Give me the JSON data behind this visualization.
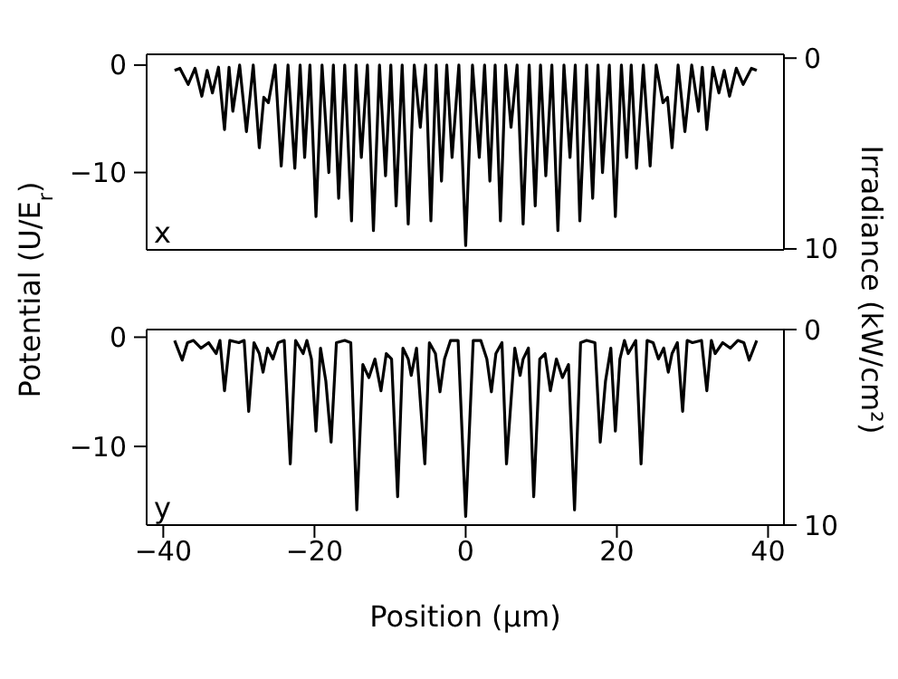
{
  "chart_data": [
    {
      "type": "line",
      "ylabel": "Potential (U/E$_{r}$)",
      "y2label": "Irradiance (kW/cm²)",
      "annotations": [
        "x"
      ],
      "xlim": [
        -42.2,
        42.1
      ],
      "xticks": [
        -40,
        -20,
        0,
        20,
        40
      ],
      "ylim": [
        -17.2,
        1
      ],
      "yticks": [
        {
          "value": 0,
          "label": "0"
        },
        -10
      ],
      "y2lim": [
        10.05,
        -0.2
      ],
      "y2ticks": [
        {
          "value": 0,
          "label": "0"
        },
        10
      ],
      "tick_labels": "y",
      "series": [
        {
          "color": "#000000",
          "x": [
            -38.5,
            -37.8,
            -36.7,
            -35.8,
            -34.9,
            -34.2,
            -33.5,
            -32.7,
            -31.9,
            -31.3,
            -30.8,
            -29.9,
            -29.0,
            -28.1,
            -27.3,
            -26.7,
            -26.1,
            -25.2,
            -24.4,
            -23.5,
            -22.6,
            -21.9,
            -21.3,
            -20.6,
            -19.8,
            -19.0,
            -18.1,
            -17.5,
            -16.8,
            -16.0,
            -15.1,
            -14.5,
            -13.8,
            -13.0,
            -12.2,
            -11.4,
            -10.6,
            -9.9,
            -9.2,
            -8.4,
            -7.6,
            -6.8,
            -6.0,
            -5.3,
            -4.6,
            -3.9,
            -3.2,
            -2.5,
            -1.8,
            -0.9,
            0,
            0.9,
            1.8,
            2.5,
            3.2,
            3.9,
            4.6,
            5.3,
            6.0,
            6.8,
            7.6,
            8.4,
            9.2,
            9.9,
            10.6,
            11.4,
            12.2,
            13.0,
            13.8,
            14.5,
            15.1,
            16.0,
            16.8,
            17.5,
            18.1,
            19.0,
            19.8,
            20.6,
            21.3,
            21.9,
            22.6,
            23.5,
            24.4,
            25.2,
            26.1,
            26.7,
            27.3,
            28.1,
            29.0,
            29.9,
            30.8,
            31.3,
            31.9,
            32.7,
            33.5,
            34.2,
            34.9,
            35.8,
            36.7,
            37.8,
            38.5
          ],
          "values": [
            -0.5,
            -0.3,
            -1.8,
            -0.3,
            -2.9,
            -0.5,
            -2.6,
            -0.2,
            -6.0,
            -0.2,
            -4.3,
            0,
            -6.2,
            0,
            -7.7,
            -3.0,
            -3.5,
            0,
            -9.4,
            0,
            -9.6,
            0,
            -8.6,
            0,
            -14.1,
            0,
            -10.0,
            0,
            -12.4,
            0,
            -14.5,
            0,
            -8.6,
            0,
            -15.4,
            0,
            -10.3,
            0,
            -13.1,
            0,
            -14.8,
            0,
            -5.8,
            0,
            -14.5,
            0,
            -10.8,
            0,
            -8.6,
            0,
            -16.8,
            0,
            -8.6,
            0,
            -10.8,
            0,
            -14.5,
            0,
            -5.8,
            0,
            -14.8,
            0,
            -13.1,
            0,
            -10.3,
            0,
            -15.4,
            0,
            -8.6,
            0,
            -14.5,
            0,
            -12.4,
            0,
            -10.0,
            0,
            -14.1,
            0,
            -8.6,
            0,
            -9.6,
            0,
            -9.4,
            0,
            -3.5,
            -3.0,
            -7.7,
            0,
            -6.2,
            0,
            -4.3,
            -0.2,
            -6.0,
            -0.2,
            -2.6,
            -0.5,
            -2.9,
            -0.3,
            -1.8,
            -0.3,
            -0.5
          ]
        }
      ]
    },
    {
      "type": "line",
      "xlabel": "Position (µm)",
      "annotations": [
        "y"
      ],
      "xlim": [
        -42.2,
        42.1
      ],
      "xticks": [
        -40,
        -20,
        0,
        20,
        40
      ],
      "ylim": [
        -17.2,
        0.7
      ],
      "yticks": [
        {
          "value": 0,
          "label": "0"
        },
        -10
      ],
      "y2lim": [
        10,
        0
      ],
      "y2ticks": [
        {
          "value": 0,
          "label": "0"
        },
        10
      ],
      "series": [
        {
          "color": "#000000",
          "x": [
            -38.5,
            -37.5,
            -36.8,
            -36,
            -35,
            -34,
            -33,
            -32.5,
            -31.9,
            -31.2,
            -30,
            -29.3,
            -28.7,
            -28.0,
            -27.3,
            -26.8,
            -26.2,
            -25.5,
            -24.8,
            -24,
            -23.2,
            -22.5,
            -21.5,
            -21.0,
            -20.4,
            -19.8,
            -19.2,
            -18.5,
            -17.8,
            -17.1,
            -16,
            -15.2,
            -14.4,
            -13.6,
            -12.8,
            -12,
            -11.2,
            -10.5,
            -9.8,
            -9.0,
            -8.3,
            -7.6,
            -7.2,
            -6.5,
            -5.4,
            -4.8,
            -4.0,
            -3.4,
            -2.8,
            -2.0,
            -1.0,
            0,
            1.0,
            2.0,
            2.8,
            3.4,
            4.0,
            4.8,
            5.4,
            6.5,
            7.2,
            7.6,
            8.3,
            9.0,
            9.8,
            10.5,
            11.2,
            12,
            12.8,
            13.6,
            14.4,
            15.2,
            16,
            17.1,
            17.8,
            18.5,
            19.2,
            19.8,
            20.4,
            21.0,
            21.5,
            22.5,
            23.2,
            24,
            24.8,
            25.5,
            26.2,
            26.8,
            27.3,
            28.0,
            28.7,
            29.3,
            30,
            31.2,
            31.9,
            32.5,
            33,
            34,
            35,
            36,
            36.8,
            37.5,
            38.5
          ],
          "values": [
            -0.3,
            -2.1,
            -0.5,
            -0.3,
            -1.0,
            -0.5,
            -1.5,
            -0.3,
            -4.9,
            -0.3,
            -0.5,
            -0.3,
            -6.8,
            -0.5,
            -1.5,
            -3.2,
            -1.0,
            -2.0,
            -0.5,
            -0.3,
            -11.6,
            -0.3,
            -1.5,
            -0.3,
            -2.0,
            -8.6,
            -1.0,
            -4.0,
            -9.6,
            -0.5,
            -0.3,
            -0.5,
            -15.8,
            -2.5,
            -3.7,
            -2.0,
            -4.9,
            -1.5,
            -2.0,
            -14.6,
            -1.0,
            -2.0,
            -3.5,
            -1.0,
            -11.6,
            -0.5,
            -1.5,
            -5.0,
            -2.0,
            -0.3,
            -0.3,
            -16.4,
            -0.3,
            -0.3,
            -2.0,
            -5.0,
            -1.5,
            -0.5,
            -11.6,
            -1.0,
            -3.5,
            -2.0,
            -1.0,
            -14.6,
            -2.0,
            -1.5,
            -4.9,
            -2.0,
            -3.7,
            -2.5,
            -15.8,
            -0.5,
            -0.3,
            -0.5,
            -9.6,
            -4.0,
            -1.0,
            -8.6,
            -2.0,
            -0.3,
            -1.5,
            -0.3,
            -11.6,
            -0.3,
            -0.5,
            -2.0,
            -1.0,
            -3.2,
            -1.5,
            -0.5,
            -6.8,
            -0.3,
            -0.5,
            -0.3,
            -4.9,
            -0.3,
            -1.5,
            -0.5,
            -1.0,
            -0.3,
            -0.5,
            -2.1,
            -0.3
          ]
        }
      ]
    }
  ]
}
